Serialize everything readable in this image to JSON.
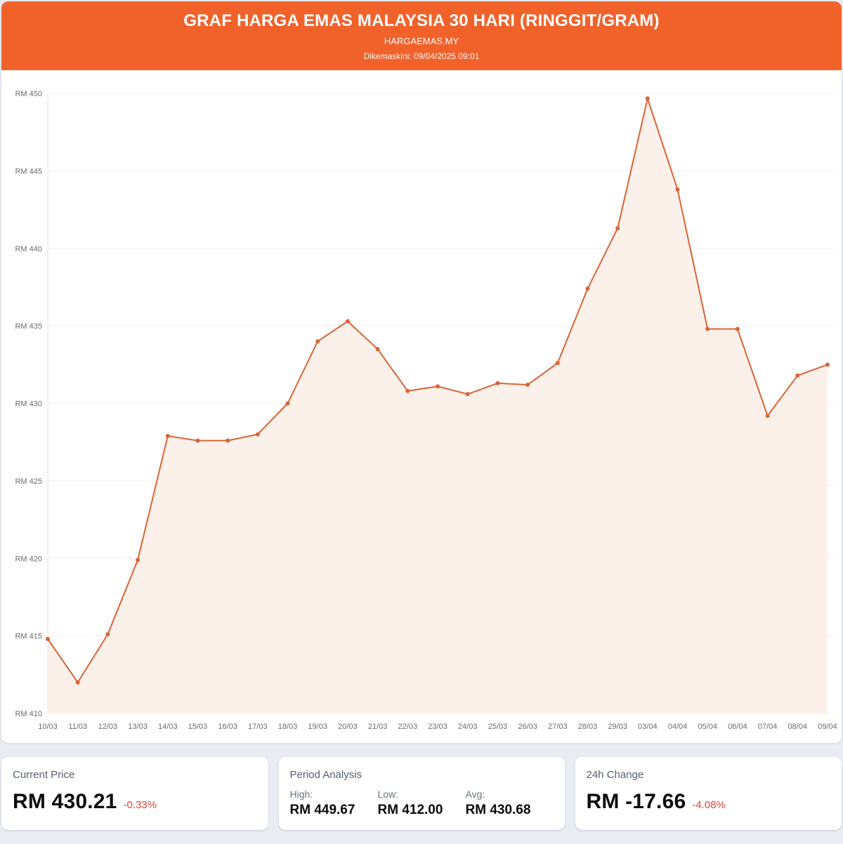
{
  "header": {
    "title": "GRAF HARGA EMAS MALAYSIA 30 HARI (RINGGIT/GRAM)",
    "subtitle": "HARGAEMAS.MY",
    "updated": "Dikemaskini: 09/04/2025 09:01"
  },
  "chart_data": {
    "type": "area",
    "title": "GRAF HARGA EMAS MALAYSIA 30 HARI (RINGGIT/GRAM)",
    "categories": [
      "10/03",
      "11/03",
      "12/03",
      "13/03",
      "14/03",
      "15/03",
      "16/03",
      "17/03",
      "18/03",
      "19/03",
      "20/03",
      "21/03",
      "22/03",
      "23/03",
      "24/03",
      "25/03",
      "26/03",
      "27/03",
      "28/03",
      "29/03",
      "03/04",
      "04/04",
      "05/04",
      "06/04",
      "07/04",
      "08/04",
      "09/04"
    ],
    "values": [
      414.8,
      412.0,
      415.1,
      419.9,
      427.9,
      427.6,
      427.6,
      428.0,
      430.0,
      434.0,
      435.3,
      433.5,
      430.8,
      431.1,
      430.6,
      431.3,
      431.2,
      432.6,
      437.4,
      441.3,
      449.67,
      443.8,
      434.8,
      434.8,
      429.2,
      431.8,
      432.5
    ],
    "xlabel": "",
    "ylabel": "",
    "ylim": [
      410,
      450
    ],
    "y_ticks": [
      410,
      415,
      420,
      425,
      430,
      435,
      440,
      445,
      450
    ],
    "y_prefix": "RM ",
    "grid": true,
    "legend": "none",
    "line_color": "#db6437",
    "fill_color": "#fcf1ea",
    "grid_color": "#f0f0f0",
    "axis_line_color": "#e4e4e4",
    "tick_color": "#6b6b6b"
  },
  "cards": {
    "current_price": {
      "label": "Current Price",
      "value": "RM 430.21",
      "change_pct": "-0.33%"
    },
    "period_analysis": {
      "label": "Period Analysis",
      "stats": [
        {
          "label": "High:",
          "value": "RM 449.67"
        },
        {
          "label": "Low:",
          "value": "RM 412.00"
        },
        {
          "label": "Avg:",
          "value": "RM 430.68"
        }
      ]
    },
    "change_24h": {
      "label": "24h Change",
      "value": "RM -17.66",
      "change_pct": "-4.08%"
    }
  },
  "colors": {
    "header_bg": "#f1622b",
    "page_bg": "#e9edf3",
    "negative": "#d9453f"
  }
}
